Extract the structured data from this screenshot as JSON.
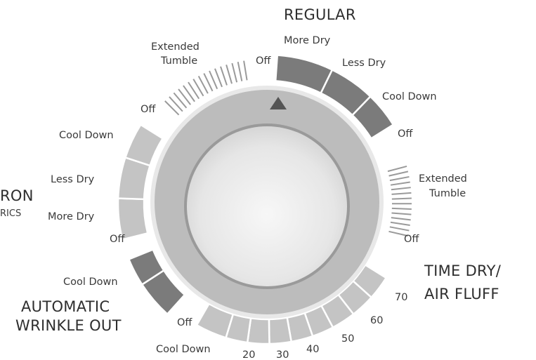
{
  "colors": {
    "dark_segment": "#7b7b7b",
    "mid_segment": "#a6a6a6",
    "light_segment": "#c4c4c4",
    "ring": "#b5b5b5",
    "knob_center": "#f3f3f3",
    "indicator": "#555555"
  },
  "icons": {
    "pointer": "triangle-indicator"
  },
  "groups": {
    "regular": "REGULAR",
    "perm_press_line1": "RON",
    "perm_press_line2": "RICS",
    "auto_wrinkle_line1": "AUTOMATIC",
    "auto_wrinkle_line2": "WRINKLE OUT",
    "time_dry_line1": "TIME DRY/",
    "time_dry_line2": "AIR FLUFF"
  },
  "labels": {
    "regular_more_dry": "More Dry",
    "regular_less_dry": "Less Dry",
    "regular_cool_down": "Cool Down",
    "regular_off": "Off",
    "right_ext_line1": "Extended",
    "right_ext_line2": "Tumble",
    "right_ext_off": "Off",
    "t70": "70",
    "t60": "60",
    "t50": "50",
    "t40": "40",
    "t30": "30",
    "t20": "20",
    "time_cool_down": "Cool Down",
    "time_off": "Off",
    "auto_cool_down": "Cool Down",
    "auto_off": "Off",
    "perm_more_dry": "More Dry",
    "perm_less_dry": "Less Dry",
    "perm_cool_down": "Cool Down",
    "perm_off": "Off",
    "top_ext_line1": "Extended",
    "top_ext_line2": "Tumble",
    "top_ext_off": "Off"
  }
}
